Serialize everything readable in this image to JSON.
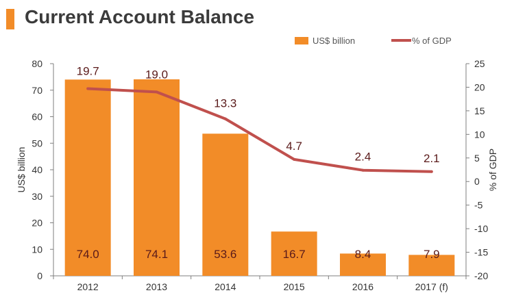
{
  "title": "Current Account Balance",
  "chart_data": {
    "type": "bar+line",
    "categories": [
      "2012",
      "2013",
      "2014",
      "2015",
      "2016",
      "2017 (f)"
    ],
    "bars": {
      "name": "US$ billion",
      "values": [
        74.0,
        74.1,
        53.6,
        16.7,
        8.4,
        7.9
      ],
      "labels": [
        "74.0",
        "74.1",
        "53.6",
        "16.7",
        "8.4",
        "7.9"
      ]
    },
    "line": {
      "name": "% of GDP",
      "values": [
        19.7,
        19.0,
        13.3,
        4.7,
        2.4,
        2.1
      ],
      "labels": [
        "19.7",
        "19.0",
        "13.3",
        "4.7",
        "2.4",
        "2.1"
      ]
    },
    "ylabel_left": "US$ billion",
    "ylabel_right": "% of GDP",
    "ylim_left": [
      0,
      80
    ],
    "ylim_right": [
      -20,
      25
    ],
    "yticks_left": [
      "0",
      "10",
      "20",
      "30",
      "40",
      "50",
      "60",
      "70",
      "80"
    ],
    "yticks_right": [
      "-20",
      "-15",
      "-10",
      "-5",
      "0",
      "5",
      "10",
      "15",
      "20",
      "25"
    ],
    "grid": false,
    "legend_position": "top-right",
    "colors": {
      "bar": "#f28c28",
      "line": "#c0504d",
      "title_accent": "#f28c28",
      "label_text": "#5a1a1a"
    }
  }
}
